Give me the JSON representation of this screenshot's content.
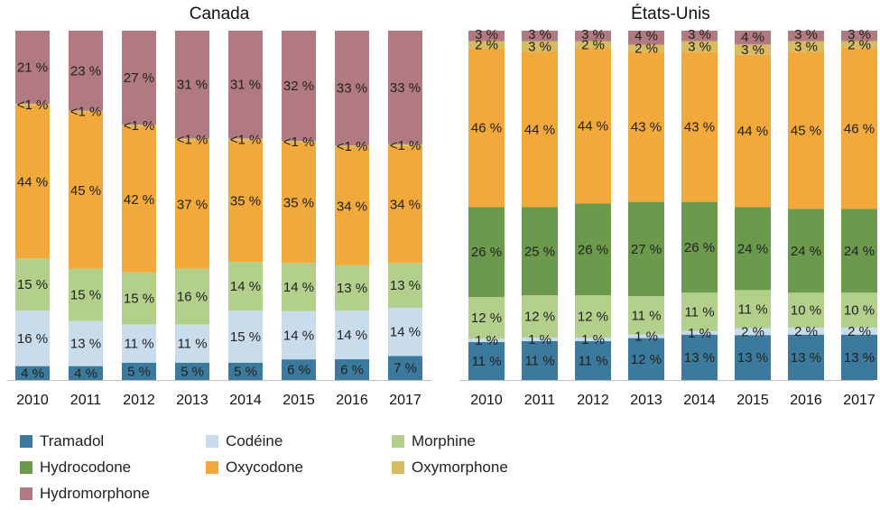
{
  "chart_data": [
    {
      "type": "bar",
      "stacked": "percent",
      "title": "Canada",
      "categories": [
        "2010",
        "2011",
        "2012",
        "2013",
        "2014",
        "2015",
        "2016",
        "2017"
      ],
      "ylim": [
        0,
        100
      ],
      "series": [
        {
          "name": "Tramadol",
          "color": "#3b7a9c",
          "values": [
            4,
            4,
            5,
            5,
            5,
            6,
            6,
            7
          ],
          "labels": [
            "4 %",
            "4 %",
            "5 %",
            "5 %",
            "5 %",
            "6 %",
            "6 %",
            "7 %"
          ]
        },
        {
          "name": "Codéine",
          "color": "#c9dcec",
          "values": [
            16,
            13,
            11,
            11,
            15,
            14,
            14,
            14
          ],
          "labels": [
            "16 %",
            "13 %",
            "11 %",
            "11 %",
            "15 %",
            "14 %",
            "14 %",
            "14 %"
          ]
        },
        {
          "name": "Morphine",
          "color": "#b3cf8c",
          "values": [
            15,
            15,
            15,
            16,
            14,
            14,
            13,
            13
          ],
          "labels": [
            "15 %",
            "15 %",
            "15 %",
            "16 %",
            "14 %",
            "14 %",
            "13 %",
            "13 %"
          ]
        },
        {
          "name": "Hydrocodone",
          "color": "#6b9a4c",
          "values": [
            0,
            0,
            0,
            0,
            0,
            0,
            0,
            0
          ],
          "labels": [
            "",
            "",
            "",
            "",
            "",
            "",
            "",
            ""
          ]
        },
        {
          "name": "Oxycodone",
          "color": "#f0a93a",
          "values": [
            44,
            45,
            42,
            37,
            35,
            35,
            34,
            34
          ],
          "labels": [
            "44 %",
            "45 %",
            "42 %",
            "37 %",
            "35 %",
            "35 %",
            "34 %",
            "34 %"
          ]
        },
        {
          "name": "Oxymorphone",
          "color": "#d6bb62",
          "values": [
            0.5,
            0.5,
            0.5,
            0.5,
            0.5,
            0.5,
            0.5,
            0.5
          ],
          "labels": [
            "<1 %",
            "<1 %",
            "<1 %",
            "<1 %",
            "<1 %",
            "<1 %",
            "<1 %",
            "<1 %"
          ]
        },
        {
          "name": "Hydromorphone",
          "color": "#b07a80",
          "values": [
            21,
            23,
            27,
            31,
            31,
            32,
            33,
            33
          ],
          "labels": [
            "21 %",
            "23 %",
            "27 %",
            "31 %",
            "31 %",
            "32 %",
            "33 %",
            "33 %"
          ]
        }
      ]
    },
    {
      "type": "bar",
      "stacked": "percent",
      "title": "États-Unis",
      "categories": [
        "2010",
        "2011",
        "2012",
        "2013",
        "2014",
        "2015",
        "2016",
        "2017"
      ],
      "ylim": [
        0,
        100
      ],
      "series": [
        {
          "name": "Tramadol",
          "color": "#3b7a9c",
          "values": [
            11,
            11,
            11,
            12,
            13,
            13,
            13,
            13
          ],
          "labels": [
            "11 %",
            "11 %",
            "11 %",
            "12 %",
            "13 %",
            "13 %",
            "13 %",
            "13 %"
          ]
        },
        {
          "name": "Codéine",
          "color": "#c9dcec",
          "values": [
            1,
            1,
            1,
            1,
            1,
            2,
            2,
            2
          ],
          "labels": [
            "1 %",
            "1 %",
            "1 %",
            "1 %",
            "1 %",
            "2 %",
            "2 %",
            "2 %"
          ]
        },
        {
          "name": "Morphine",
          "color": "#b3cf8c",
          "values": [
            12,
            12,
            12,
            11,
            11,
            11,
            10,
            10
          ],
          "labels": [
            "12 %",
            "12 %",
            "12 %",
            "11 %",
            "11 %",
            "11 %",
            "10 %",
            "10 %"
          ]
        },
        {
          "name": "Hydrocodone",
          "color": "#6b9a4c",
          "values": [
            26,
            25,
            26,
            27,
            26,
            24,
            24,
            24
          ],
          "labels": [
            "26 %",
            "25 %",
            "26 %",
            "27 %",
            "26 %",
            "24 %",
            "24 %",
            "24 %"
          ]
        },
        {
          "name": "Oxycodone",
          "color": "#f0a93a",
          "values": [
            46,
            44,
            44,
            43,
            43,
            44,
            45,
            46
          ],
          "labels": [
            "46 %",
            "44 %",
            "44 %",
            "43 %",
            "43 %",
            "44 %",
            "45 %",
            "46 %"
          ]
        },
        {
          "name": "Oxymorphone",
          "color": "#d6bb62",
          "values": [
            2,
            3,
            2,
            2,
            3,
            3,
            3,
            2
          ],
          "labels": [
            "2 %",
            "3 %",
            "2 %",
            "2 %",
            "3 %",
            "3 %",
            "3 %",
            "2 %"
          ]
        },
        {
          "name": "Hydromorphone",
          "color": "#b07a80",
          "values": [
            3,
            3,
            3,
            4,
            3,
            4,
            3,
            3
          ],
          "labels": [
            "3 %",
            "3 %",
            "3 %",
            "4 %",
            "3 %",
            "4 %",
            "3 %",
            "3 %"
          ]
        }
      ]
    }
  ],
  "legend": {
    "items": [
      {
        "name": "Tramadol",
        "color": "#3b7a9c"
      },
      {
        "name": "Codéine",
        "color": "#c9dcec"
      },
      {
        "name": "Morphine",
        "color": "#b3cf8c"
      },
      {
        "name": "Hydrocodone",
        "color": "#6b9a4c"
      },
      {
        "name": "Oxycodone",
        "color": "#f0a93a"
      },
      {
        "name": "Oxymorphone",
        "color": "#d6bb62"
      },
      {
        "name": "Hydromorphone",
        "color": "#b07a80"
      }
    ]
  }
}
